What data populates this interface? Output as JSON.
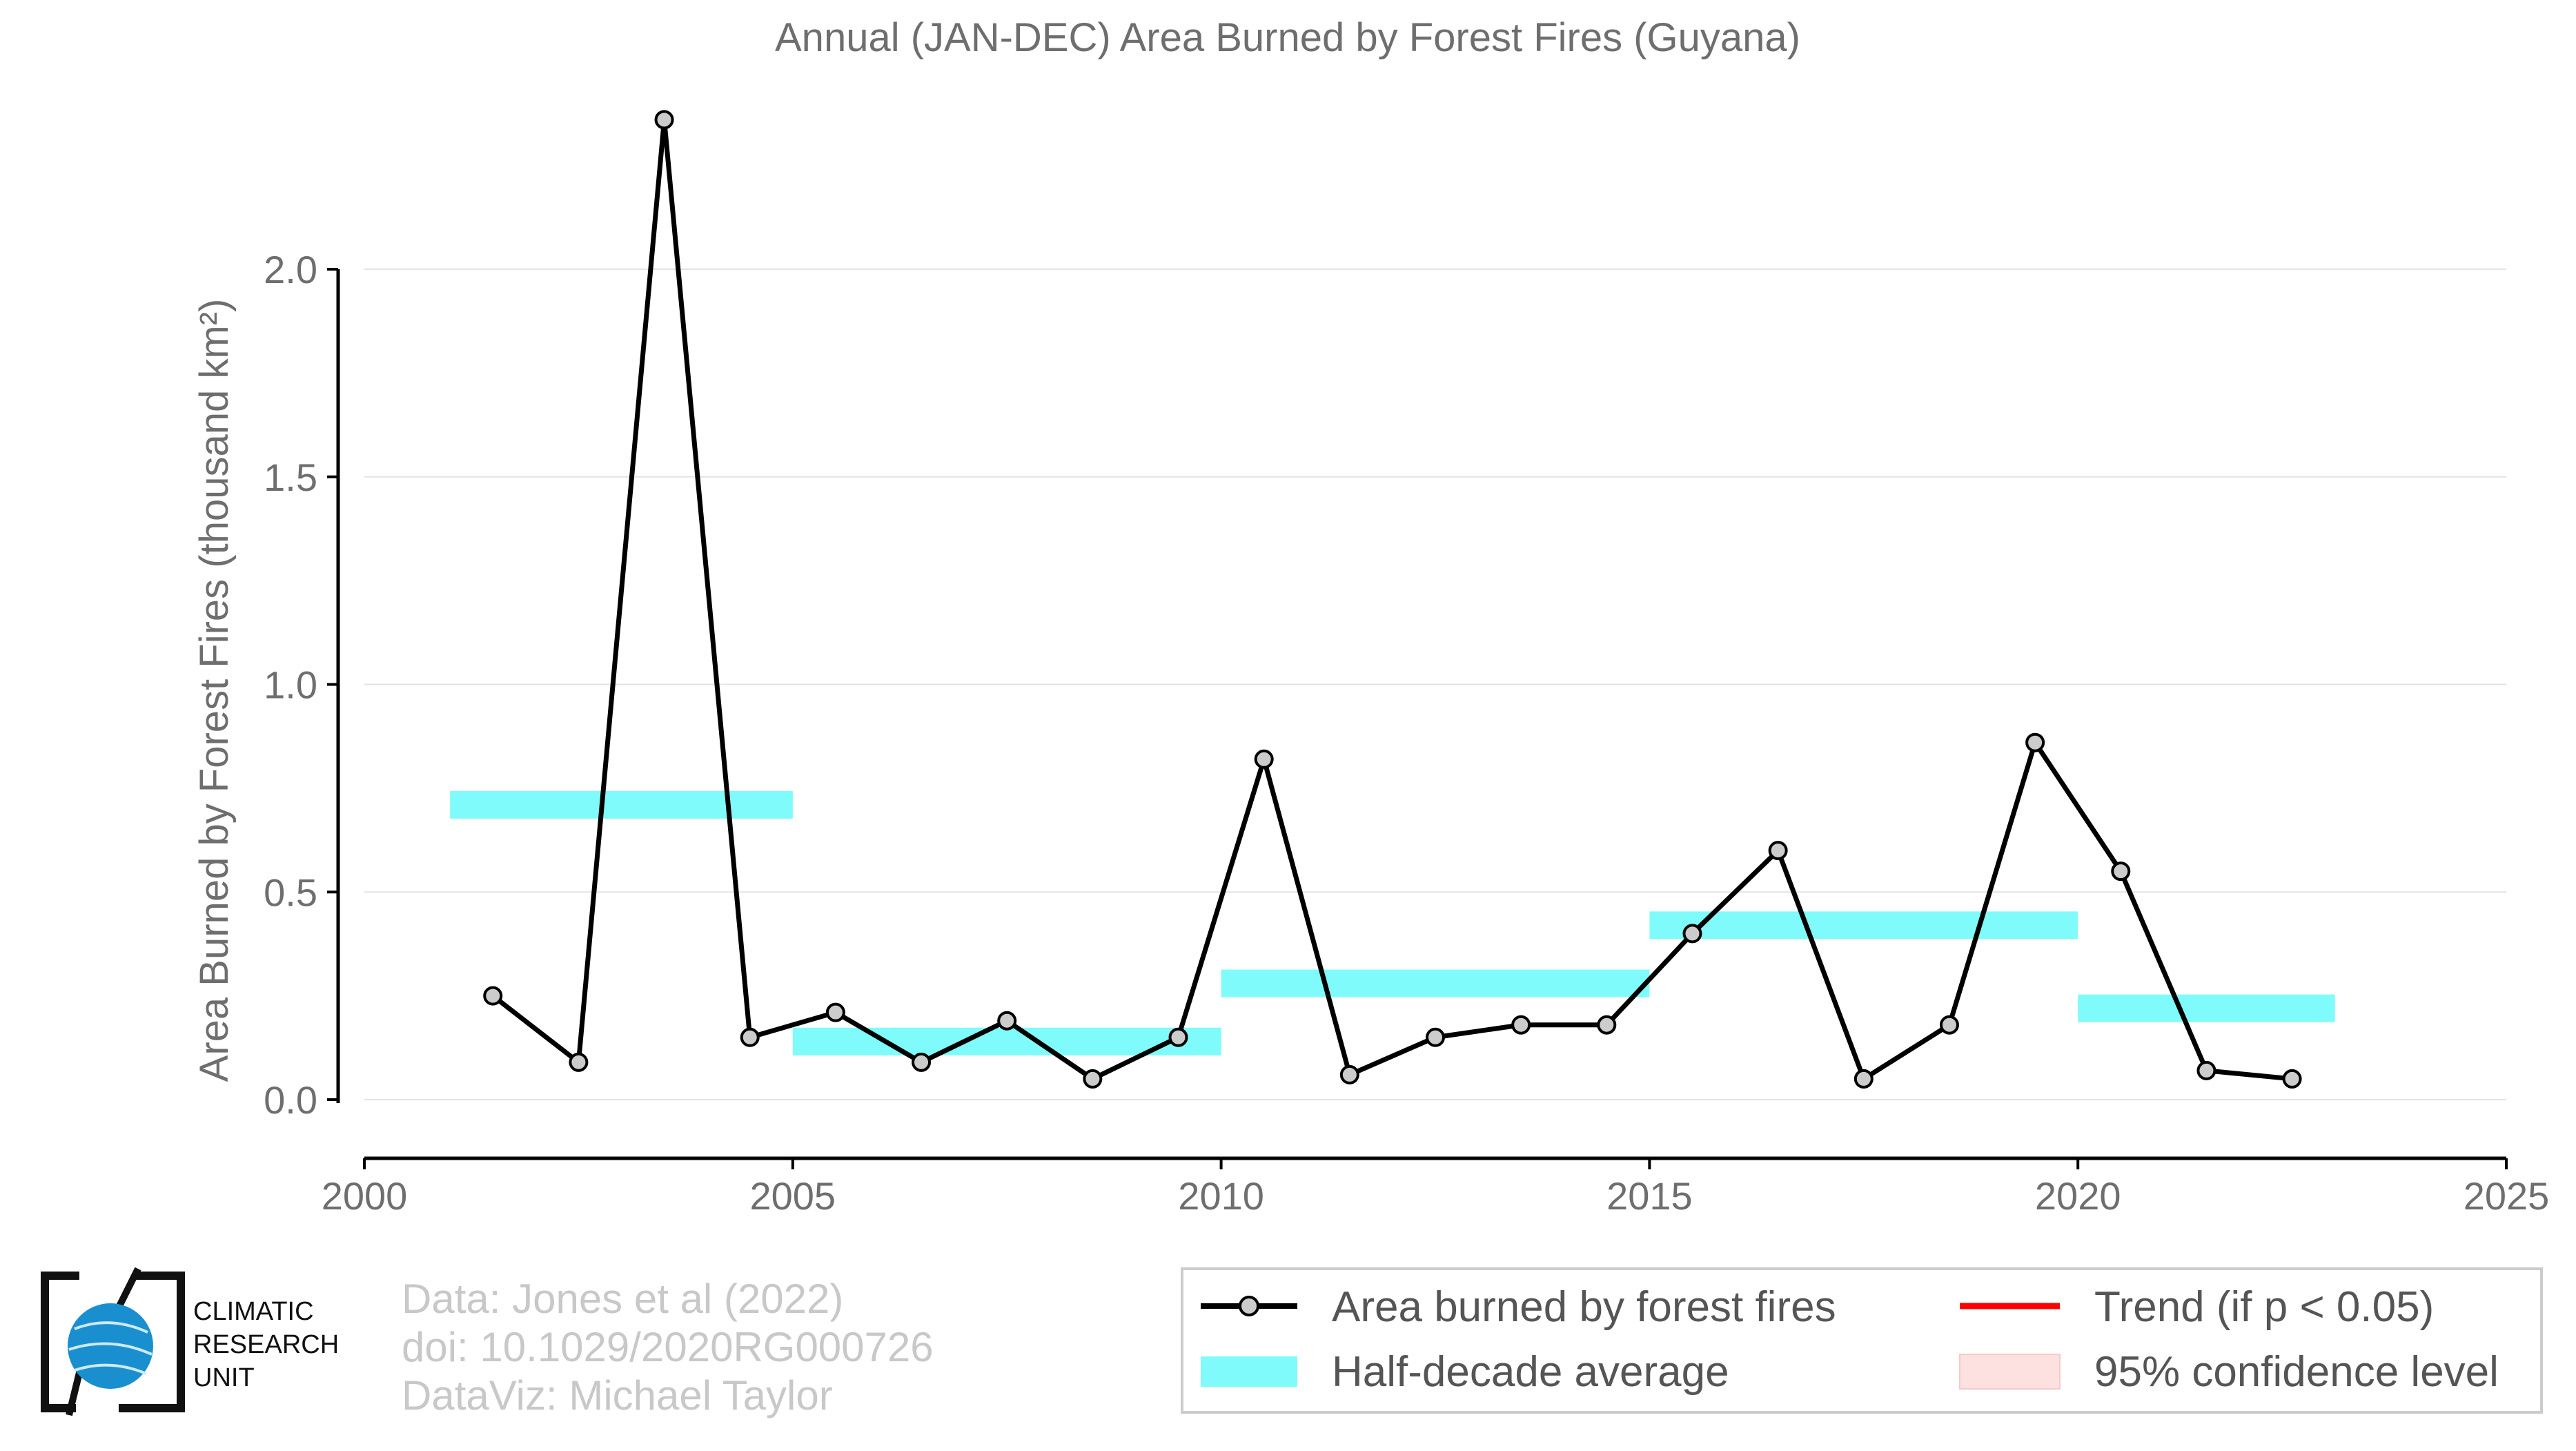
{
  "chart_data": {
    "type": "line",
    "title": "Annual (JAN-DEC) Area Burned by Forest Fires (Guyana)",
    "ylabel": "Area Burned by Forest Fires (thousand km²)",
    "xlabel": "",
    "xlim": [
      2000,
      2025
    ],
    "ylim": [
      -0.13,
      2.4
    ],
    "x_ticks": [
      "2000",
      "2005",
      "2010",
      "2015",
      "2020",
      "2025"
    ],
    "y_ticks": [
      "0.0",
      "0.5",
      "1.0",
      "1.5",
      "2.0"
    ],
    "grid": "horizontal",
    "legend_position": "bottom-right",
    "series": [
      {
        "name": "Area burned by forest fires",
        "color": "#000000",
        "x": [
          2001.5,
          2002.5,
          2003.5,
          2004.5,
          2005.5,
          2006.5,
          2007.5,
          2008.5,
          2009.5,
          2010.5,
          2011.5,
          2012.5,
          2013.5,
          2014.5,
          2015.5,
          2016.5,
          2017.5,
          2018.5,
          2019.5,
          2020.5,
          2021.5,
          2022.5
        ],
        "y": [
          0.25,
          0.09,
          2.36,
          0.15,
          0.21,
          0.09,
          0.19,
          0.05,
          0.15,
          0.82,
          0.06,
          0.15,
          0.18,
          0.18,
          0.4,
          0.6,
          0.05,
          0.18,
          0.86,
          0.55,
          0.07,
          0.05
        ]
      },
      {
        "name": "Half-decade average",
        "color": "#7ffbfb",
        "segments": [
          {
            "x0": 2001,
            "x1": 2005,
            "y": 0.71
          },
          {
            "x0": 2005,
            "x1": 2010,
            "y": 0.14
          },
          {
            "x0": 2010,
            "x1": 2015,
            "y": 0.28
          },
          {
            "x0": 2015,
            "x1": 2020,
            "y": 0.42
          },
          {
            "x0": 2020,
            "x1": 2023,
            "y": 0.22
          }
        ]
      }
    ]
  },
  "legend": {
    "items": [
      {
        "label": "Area burned by forest fires"
      },
      {
        "label": "Trend (if p < 0.05)"
      },
      {
        "label": "Half-decade average"
      },
      {
        "label": "95% confidence level"
      }
    ],
    "trend_color": "#ff0000",
    "confidence_color": "#fde0e0"
  },
  "credits": {
    "line1": "Data: Jones et al (2022)",
    "line2": "doi: 10.1029/2020RG000726",
    "line3": "DataViz: Michael Taylor"
  },
  "logo": {
    "line1": "CLIMATIC",
    "line2": "RESEARCH",
    "line3": "UNIT"
  }
}
